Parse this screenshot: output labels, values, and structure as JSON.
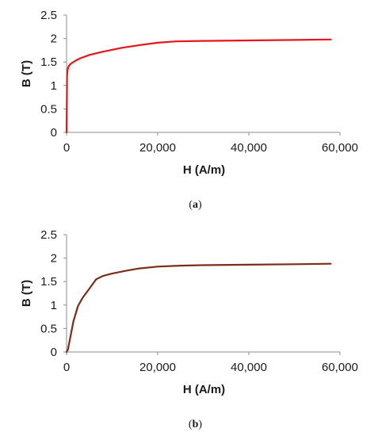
{
  "chart_data": [
    {
      "type": "line",
      "caption": "(a)",
      "caption_letter": "a",
      "xlabel": "H (A/m)",
      "ylabel": "B (T)",
      "xlim": [
        0,
        60000
      ],
      "ylim": [
        0,
        2.5
      ],
      "x_ticks": [
        "0",
        "20,000",
        "40,000",
        "60,000"
      ],
      "y_ticks": [
        "0",
        "0.5",
        "1",
        "1.5",
        "2",
        "2.5"
      ],
      "grid": false,
      "line_color": "#e8161b",
      "series": [
        {
          "x": [
            0,
            100,
            200,
            400,
            700,
            1000,
            2000,
            3000,
            5000,
            8000,
            12000,
            16000,
            20000,
            24000,
            30000,
            40000,
            50000,
            58000
          ],
          "y": [
            0,
            1.2,
            1.33,
            1.4,
            1.44,
            1.47,
            1.53,
            1.58,
            1.65,
            1.72,
            1.8,
            1.86,
            1.91,
            1.94,
            1.95,
            1.96,
            1.97,
            1.98
          ]
        }
      ]
    },
    {
      "type": "line",
      "caption": "(b)",
      "caption_letter": "b",
      "xlabel": "H (A/m)",
      "ylabel": "B (T)",
      "xlim": [
        0,
        60000
      ],
      "ylim": [
        0,
        2.5
      ],
      "x_ticks": [
        "0",
        "20,000",
        "40,000",
        "60,000"
      ],
      "y_ticks": [
        "0",
        "0.5",
        "1",
        "1.5",
        "2",
        "2.5"
      ],
      "grid": false,
      "line_color": "#7a2e18",
      "series": [
        {
          "x": [
            0,
            300,
            800,
            1500,
            2500,
            3500,
            5000,
            6500,
            8000,
            10000,
            13000,
            16000,
            20000,
            25000,
            30000,
            40000,
            50000,
            58000
          ],
          "y": [
            0,
            0.05,
            0.3,
            0.65,
            0.98,
            1.15,
            1.35,
            1.55,
            1.62,
            1.67,
            1.73,
            1.78,
            1.82,
            1.84,
            1.85,
            1.86,
            1.87,
            1.88
          ]
        }
      ]
    }
  ]
}
